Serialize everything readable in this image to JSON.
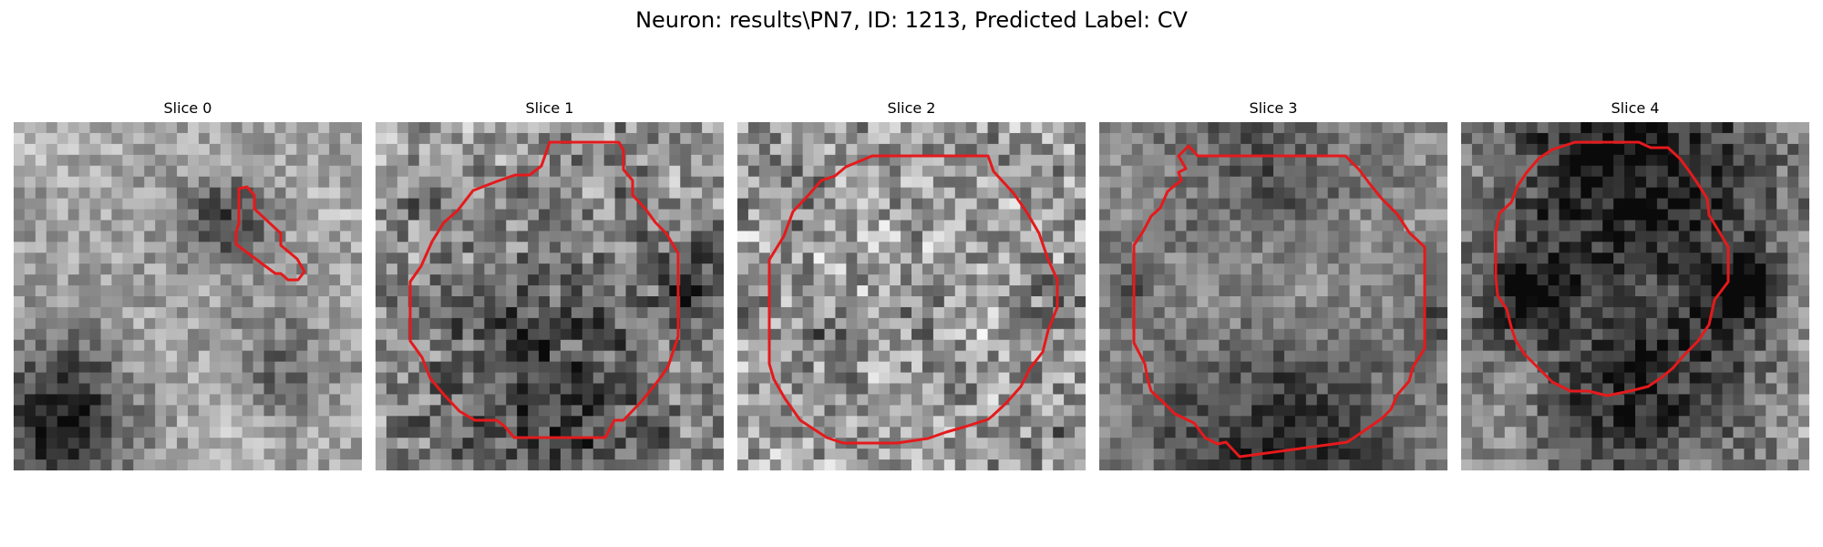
{
  "figure": {
    "title": "Neuron: results\\PN7, ID: 1213, Predicted Label: CV",
    "contour_color": "#e41a1c"
  },
  "panels": [
    {
      "title": "Slice 0"
    },
    {
      "title": "Slice 1"
    },
    {
      "title": "Slice 2"
    },
    {
      "title": "Slice 3"
    },
    {
      "title": "Slice 4"
    }
  ]
}
